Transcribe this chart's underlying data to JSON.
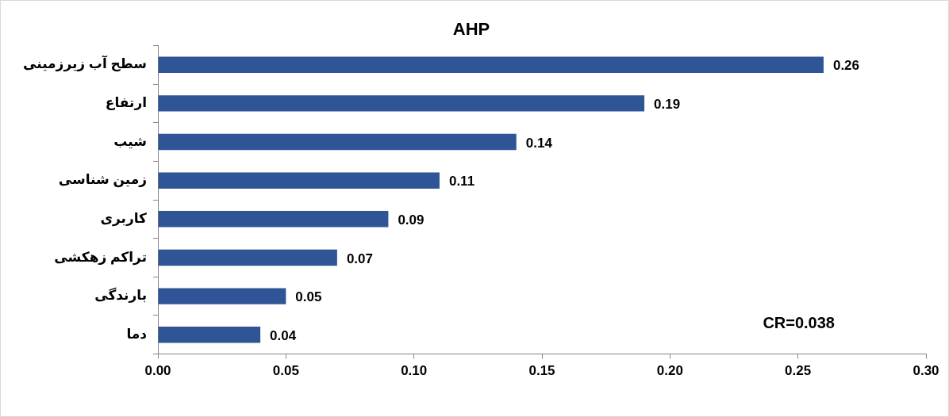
{
  "chart_data": {
    "type": "bar",
    "orientation": "horizontal",
    "title": "AHP",
    "categories": [
      "سطح آب زیرزمینی",
      "ارتفاع",
      "شیب",
      "زمین شناسی",
      "کاربری",
      "تراکم زهکشی",
      "بارندگی",
      "دما"
    ],
    "values": [
      0.26,
      0.19,
      0.14,
      0.11,
      0.09,
      0.07,
      0.05,
      0.04
    ],
    "color": "#2f5597",
    "xlim": [
      0,
      0.3
    ],
    "xticks": [
      {
        "value": 0,
        "label": "0.00"
      },
      {
        "value": 0.05,
        "label": "0.05"
      },
      {
        "value": 0.1,
        "label": "0.10"
      },
      {
        "value": 0.15,
        "label": "0.15"
      },
      {
        "value": 0.2,
        "label": "0.20"
      },
      {
        "value": 0.25,
        "label": "0.25"
      },
      {
        "value": 0.3,
        "label": "0.30"
      }
    ],
    "data_labels": true,
    "grid": false,
    "legend": false,
    "annotations": [
      "CR=0.038"
    ]
  }
}
